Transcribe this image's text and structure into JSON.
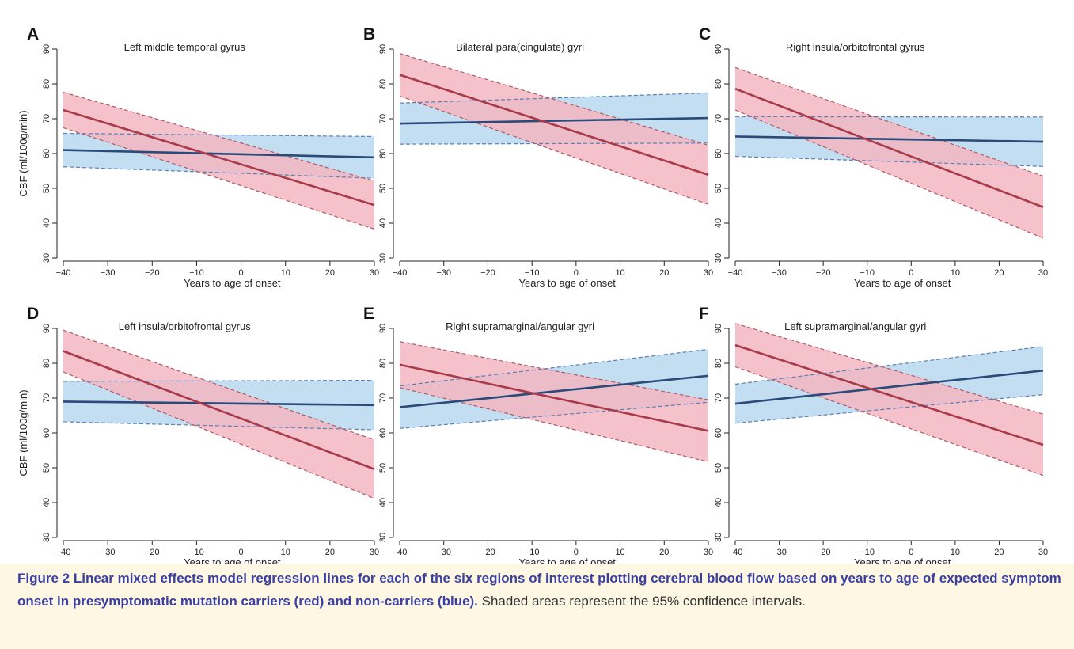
{
  "chart_data": [
    {
      "panel": "A",
      "type": "line",
      "title": "Left middle temporal gyrus",
      "xlabel": "Years to age of onset",
      "ylabel": "CBF (ml/100g/min)",
      "xlim": [
        -40,
        30
      ],
      "ylim": [
        30,
        90
      ],
      "xticks": [
        -40,
        -30,
        -20,
        -10,
        0,
        10,
        20,
        30
      ],
      "yticks": [
        30,
        40,
        50,
        60,
        70,
        80,
        90
      ],
      "series": [
        {
          "color": "#a83a4a",
          "fill": "#f3b6c2",
          "x": [
            -40,
            30
          ],
          "y": [
            72.5,
            45.2
          ],
          "lower": [
            67.4,
            38.3
          ],
          "upper": [
            77.6,
            52.1
          ]
        },
        {
          "color": "#2a4a7a",
          "fill": "#b9d7ee",
          "x": [
            -40,
            30
          ],
          "y": [
            61.0,
            58.9
          ],
          "lower": [
            56.2,
            52.9
          ],
          "upper": [
            65.8,
            64.9
          ]
        }
      ]
    },
    {
      "panel": "B",
      "type": "line",
      "title": "Bilateral para(cingulate) gyri",
      "xlabel": "Years to age of onset",
      "ylabel": "",
      "xlim": [
        -40,
        30
      ],
      "ylim": [
        30,
        90
      ],
      "xticks": [
        -40,
        -30,
        -20,
        -10,
        0,
        10,
        20,
        30
      ],
      "yticks": [
        30,
        40,
        50,
        60,
        70,
        80,
        90
      ],
      "series": [
        {
          "color": "#a83a4a",
          "fill": "#f3b6c2",
          "x": [
            -40,
            30
          ],
          "y": [
            82.6,
            53.9
          ],
          "lower": [
            76.5,
            45.4
          ],
          "upper": [
            88.7,
            62.4
          ]
        },
        {
          "color": "#2a4a7a",
          "fill": "#b9d7ee",
          "x": [
            -40,
            30
          ],
          "y": [
            68.6,
            70.2
          ],
          "lower": [
            62.7,
            63.0
          ],
          "upper": [
            74.5,
            77.4
          ]
        }
      ]
    },
    {
      "panel": "C",
      "type": "line",
      "title": "Right insula/orbitofrontal gyrus",
      "xlabel": "Years to age of onset",
      "ylabel": "",
      "xlim": [
        -40,
        30
      ],
      "ylim": [
        30,
        90
      ],
      "xticks": [
        -40,
        -30,
        -20,
        -10,
        0,
        10,
        20,
        30
      ],
      "yticks": [
        30,
        40,
        50,
        60,
        70,
        80,
        90
      ],
      "series": [
        {
          "color": "#a83a4a",
          "fill": "#f3b6c2",
          "x": [
            -40,
            30
          ],
          "y": [
            78.6,
            44.6
          ],
          "lower": [
            72.5,
            35.7
          ],
          "upper": [
            84.7,
            53.5
          ]
        },
        {
          "color": "#2a4a7a",
          "fill": "#b9d7ee",
          "x": [
            -40,
            30
          ],
          "y": [
            64.9,
            63.4
          ],
          "lower": [
            59.2,
            56.3
          ],
          "upper": [
            70.6,
            70.5
          ]
        }
      ]
    },
    {
      "panel": "D",
      "type": "line",
      "title": "Left insula/orbitofrontal gyrus",
      "xlabel": "Years to age of onset",
      "ylabel": "CBF (ml/100g/min)",
      "xlim": [
        -40,
        30
      ],
      "ylim": [
        30,
        90
      ],
      "xticks": [
        -40,
        -30,
        -20,
        -10,
        0,
        10,
        20,
        30
      ],
      "yticks": [
        30,
        40,
        50,
        60,
        70,
        80,
        90
      ],
      "series": [
        {
          "color": "#a83a4a",
          "fill": "#f3b6c2",
          "x": [
            -40,
            30
          ],
          "y": [
            83.5,
            49.6
          ],
          "lower": [
            77.5,
            41.2
          ],
          "upper": [
            89.5,
            58.0
          ]
        },
        {
          "color": "#2a4a7a",
          "fill": "#b9d7ee",
          "x": [
            -40,
            30
          ],
          "y": [
            69.0,
            68.0
          ],
          "lower": [
            63.2,
            60.9
          ],
          "upper": [
            74.8,
            75.1
          ]
        }
      ]
    },
    {
      "panel": "E",
      "type": "line",
      "title": "Right supramarginal/angular gyri",
      "xlabel": "Years to age of onset",
      "ylabel": "",
      "xlim": [
        -40,
        30
      ],
      "ylim": [
        30,
        90
      ],
      "xticks": [
        -40,
        -30,
        -20,
        -10,
        0,
        10,
        20,
        30
      ],
      "yticks": [
        30,
        40,
        50,
        60,
        70,
        80,
        90
      ],
      "series": [
        {
          "color": "#a83a4a",
          "fill": "#f3b6c2",
          "x": [
            -40,
            30
          ],
          "y": [
            79.6,
            60.6
          ],
          "lower": [
            73.0,
            51.7
          ],
          "upper": [
            86.2,
            69.5
          ]
        },
        {
          "color": "#2a4a7a",
          "fill": "#b9d7ee",
          "x": [
            -40,
            30
          ],
          "y": [
            67.4,
            76.4
          ],
          "lower": [
            61.3,
            68.8
          ],
          "upper": [
            73.5,
            84.0
          ]
        }
      ]
    },
    {
      "panel": "F",
      "type": "line",
      "title": "Left supramarginal/angular gyri",
      "xlabel": "Years to age of onset",
      "ylabel": "",
      "xlim": [
        -40,
        30
      ],
      "ylim": [
        30,
        90
      ],
      "xticks": [
        -40,
        -30,
        -20,
        -10,
        0,
        10,
        20,
        30
      ],
      "yticks": [
        30,
        40,
        50,
        60,
        70,
        80,
        90
      ],
      "series": [
        {
          "color": "#a83a4a",
          "fill": "#f3b6c2",
          "x": [
            -40,
            30
          ],
          "y": [
            85.2,
            56.6
          ],
          "lower": [
            79.0,
            47.8
          ],
          "upper": [
            91.4,
            65.4
          ]
        },
        {
          "color": "#2a4a7a",
          "fill": "#b9d7ee",
          "x": [
            -40,
            30
          ],
          "y": [
            68.4,
            77.9
          ],
          "lower": [
            62.8,
            71.0
          ],
          "upper": [
            74.0,
            84.8
          ]
        }
      ]
    }
  ],
  "caption": {
    "bold": "Figure 2  Linear mixed effects model regression lines for each of the six regions of interest plotting cerebral blood flow based on years to age of expected symptom onset in presymptomatic mutation carriers (red) and non-carriers (blue).",
    "normal": " Shaded areas represent the 95% confidence intervals."
  }
}
